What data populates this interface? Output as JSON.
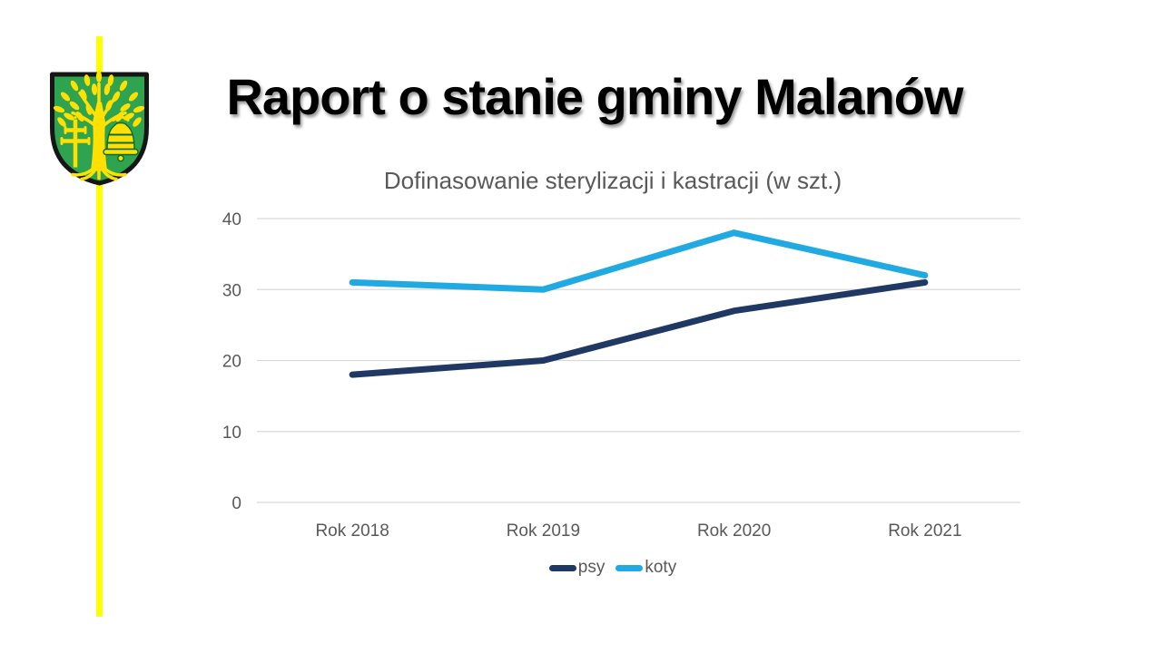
{
  "slide": {
    "title": "Raport o stanie gminy Malanów",
    "background_color": "#FFFFFF",
    "accent_line_color": "#FFFF00"
  },
  "crest": {
    "description": "malanow-coat-of-arms",
    "shield_color": "#2EA350",
    "charge_color": "#FFE000",
    "border_color": "#161616",
    "detail_color": "#0B6B2D"
  },
  "chart_data": {
    "type": "line",
    "title": "Dofinasowanie sterylizacji i kastracji (w szt.)",
    "title_color": "#595959",
    "categories": [
      "Rok 2018",
      "Rok 2019",
      "Rok 2020",
      "Rok 2021"
    ],
    "series": [
      {
        "name": "psy",
        "color": "#1F3864",
        "values": [
          18,
          20,
          27,
          31
        ]
      },
      {
        "name": "koty",
        "color": "#21A9E2",
        "values": [
          31,
          30,
          38,
          32
        ]
      }
    ],
    "ylim": [
      0,
      40
    ],
    "yticks": [
      0,
      10,
      20,
      30,
      40
    ],
    "grid": true,
    "gridline_color": "#D9D9D9",
    "axis_text_color": "#595959",
    "legend_position": "bottom"
  }
}
